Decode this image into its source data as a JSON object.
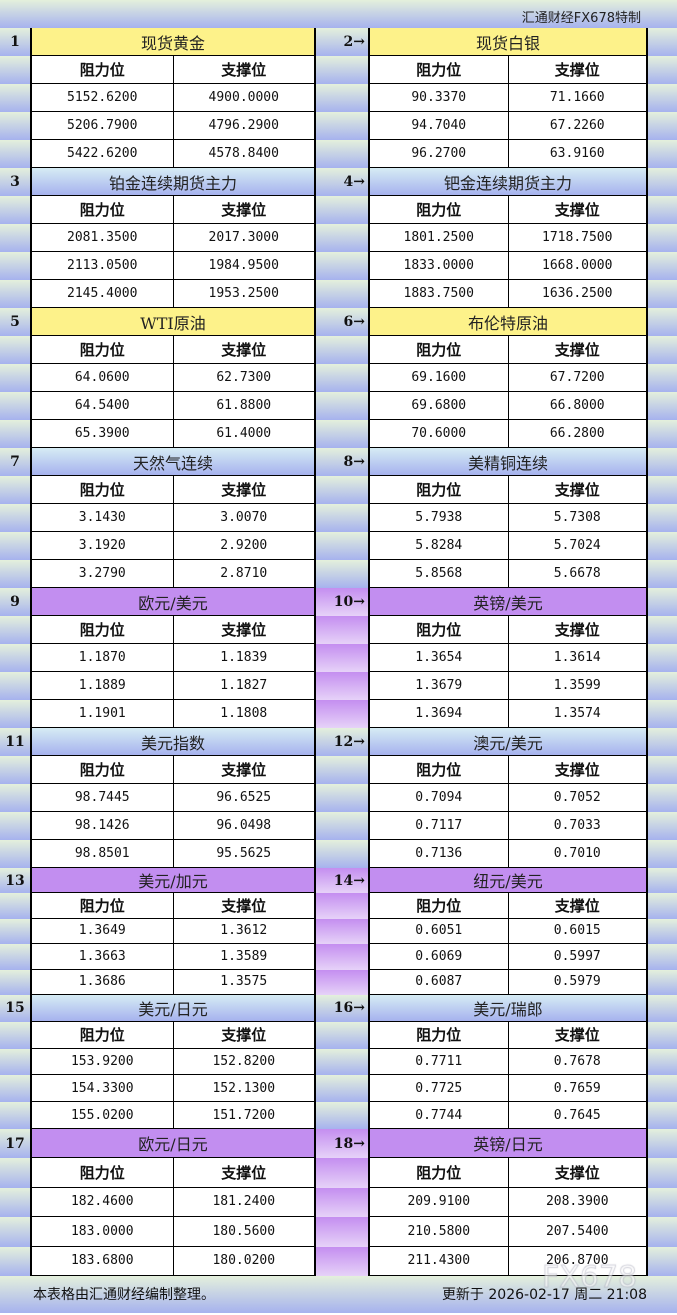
{
  "title": "汇通财经FX678特制",
  "labels": {
    "resistance": "阻力位",
    "support": "支撑位"
  },
  "colors": {
    "yellow": "#fdf28a",
    "blue": "#a6b2ee",
    "purple": "#c28ef0"
  },
  "sections": [
    {
      "theme": "yellow",
      "left": {
        "num": "1",
        "name": "现货黄金",
        "rows": [
          [
            "5152.6200",
            "4900.0000"
          ],
          [
            "5206.7900",
            "4796.2900"
          ],
          [
            "5422.6200",
            "4578.8400"
          ]
        ]
      },
      "right": {
        "num": "2→",
        "name": "现货白银",
        "rows": [
          [
            "90.3370",
            "71.1660"
          ],
          [
            "94.7040",
            "67.2260"
          ],
          [
            "96.2700",
            "63.9160"
          ]
        ]
      }
    },
    {
      "theme": "blue",
      "left": {
        "num": "3",
        "name": "铂金连续期货主力",
        "rows": [
          [
            "2081.3500",
            "2017.3000"
          ],
          [
            "2113.0500",
            "1984.9500"
          ],
          [
            "2145.4000",
            "1953.2500"
          ]
        ]
      },
      "right": {
        "num": "4→",
        "name": "钯金连续期货主力",
        "rows": [
          [
            "1801.2500",
            "1718.7500"
          ],
          [
            "1833.0000",
            "1668.0000"
          ],
          [
            "1883.7500",
            "1636.2500"
          ]
        ]
      }
    },
    {
      "theme": "yellow",
      "left": {
        "num": "5",
        "name": "WTI原油",
        "rows": [
          [
            "64.0600",
            "62.7300"
          ],
          [
            "64.5400",
            "61.8800"
          ],
          [
            "65.3900",
            "61.4000"
          ]
        ]
      },
      "right": {
        "num": "6→",
        "name": "布伦特原油",
        "rows": [
          [
            "69.1600",
            "67.7200"
          ],
          [
            "69.6800",
            "66.8000"
          ],
          [
            "70.6000",
            "66.2800"
          ]
        ]
      }
    },
    {
      "theme": "blue",
      "left": {
        "num": "7",
        "name": "天然气连续",
        "rows": [
          [
            "3.1430",
            "3.0070"
          ],
          [
            "3.1920",
            "2.9200"
          ],
          [
            "3.2790",
            "2.8710"
          ]
        ]
      },
      "right": {
        "num": "8→",
        "name": "美精铜连续",
        "rows": [
          [
            "5.7938",
            "5.7308"
          ],
          [
            "5.8284",
            "5.7024"
          ],
          [
            "5.8568",
            "5.6678"
          ]
        ]
      }
    },
    {
      "theme": "purple",
      "left": {
        "num": "9",
        "name": "欧元/美元",
        "rows": [
          [
            "1.1870",
            "1.1839"
          ],
          [
            "1.1889",
            "1.1827"
          ],
          [
            "1.1901",
            "1.1808"
          ]
        ]
      },
      "right": {
        "num": "10→",
        "name": "英镑/美元",
        "rows": [
          [
            "1.3654",
            "1.3614"
          ],
          [
            "1.3679",
            "1.3599"
          ],
          [
            "1.3694",
            "1.3574"
          ]
        ]
      }
    },
    {
      "theme": "blue",
      "left": {
        "num": "11",
        "name": "美元指数",
        "rows": [
          [
            "98.7445",
            "96.6525"
          ],
          [
            "98.1426",
            "96.0498"
          ],
          [
            "98.8501",
            "95.5625"
          ]
        ]
      },
      "right": {
        "num": "12→",
        "name": "澳元/美元",
        "rows": [
          [
            "0.7094",
            "0.7052"
          ],
          [
            "0.7117",
            "0.7033"
          ],
          [
            "0.7136",
            "0.7010"
          ]
        ]
      }
    },
    {
      "theme": "purple",
      "left": {
        "num": "13",
        "name": "美元/加元",
        "rows": [
          [
            "1.3649",
            "1.3612"
          ],
          [
            "1.3663",
            "1.3589"
          ],
          [
            "1.3686",
            "1.3575"
          ]
        ]
      },
      "right": {
        "num": "14→",
        "name": "纽元/美元",
        "rows": [
          [
            "0.6051",
            "0.6015"
          ],
          [
            "0.6069",
            "0.5997"
          ],
          [
            "0.6087",
            "0.5979"
          ]
        ]
      }
    },
    {
      "theme": "blue",
      "left": {
        "num": "15",
        "name": "美元/日元",
        "rows": [
          [
            "153.9200",
            "152.8200"
          ],
          [
            "154.3300",
            "152.1300"
          ],
          [
            "155.0200",
            "151.7200"
          ]
        ]
      },
      "right": {
        "num": "16→",
        "name": "美元/瑞郎",
        "rows": [
          [
            "0.7711",
            "0.7678"
          ],
          [
            "0.7725",
            "0.7659"
          ],
          [
            "0.7744",
            "0.7645"
          ]
        ]
      }
    },
    {
      "theme": "purple",
      "left": {
        "num": "17",
        "name": "欧元/日元",
        "rows": [
          [
            "182.4600",
            "181.2400"
          ],
          [
            "183.0000",
            "180.5600"
          ],
          [
            "183.6800",
            "180.0200"
          ]
        ]
      },
      "right": {
        "num": "18→",
        "name": "英镑/日元",
        "rows": [
          [
            "209.9100",
            "208.3900"
          ],
          [
            "210.5800",
            "207.5400"
          ],
          [
            "211.4300",
            "206.8700"
          ]
        ]
      }
    }
  ],
  "footer": {
    "note": "本表格由汇通财经编制整理。",
    "updated": "更新于 2026-02-17 周二 21:08",
    "watermark": "FX678"
  }
}
